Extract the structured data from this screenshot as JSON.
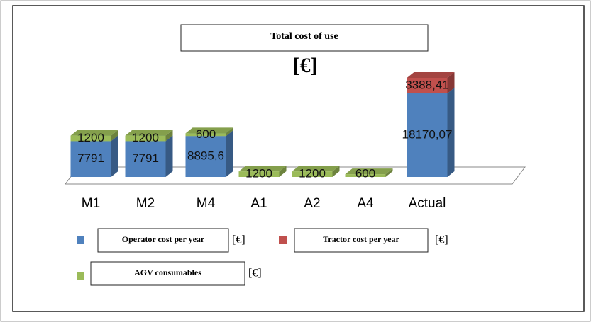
{
  "chart_data": {
    "type": "bar3d_stacked",
    "title": "Total cost of use",
    "subtitle": "[€]",
    "unit": "[€]",
    "categories": [
      "M1",
      "M2",
      "M4",
      "A1",
      "A2",
      "A4",
      "Actual"
    ],
    "series": [
      {
        "name": "Operator cost per year",
        "color": "#4f81bd",
        "values": [
          7791,
          7791,
          8895.6,
          null,
          null,
          null,
          18170.07
        ],
        "value_labels": [
          "7791",
          "7791",
          "8895,6",
          null,
          null,
          null,
          "18170,07"
        ]
      },
      {
        "name": "Tractor cost per year",
        "color": "#c0504d",
        "values": [
          null,
          null,
          null,
          null,
          null,
          null,
          3388.41
        ],
        "value_labels": [
          null,
          null,
          null,
          null,
          null,
          null,
          "3388,41"
        ]
      },
      {
        "name": "AGV consumables",
        "color": "#9bbb59",
        "values": [
          1200,
          1200,
          600,
          1200,
          1200,
          600,
          null
        ]
      }
    ]
  }
}
